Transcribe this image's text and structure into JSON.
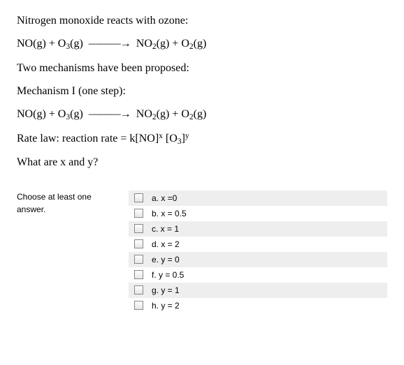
{
  "question": {
    "line1": "Nitrogen monoxide reacts with ozone:",
    "eq1_left": "NO(g) + O",
    "eq1_sub1": "3",
    "eq1_mid1": "(g)",
    "eq1_arrow": "———→",
    "eq1_r1": "NO",
    "eq1_sub2": "2",
    "eq1_r2": "(g) + O",
    "eq1_sub3": "2",
    "eq1_r3": "(g)",
    "line3": "Two mechanisms have been proposed:",
    "line4": "Mechanism I (one step):",
    "eq2_left": "NO(g) + O",
    "eq2_sub1": "3",
    "eq2_mid1": "(g)",
    "eq2_arrow": "———→",
    "eq2_r1": "NO",
    "eq2_sub2": "2",
    "eq2_r2": "(g) + O",
    "eq2_sub3": "2",
    "eq2_r3": "(g)",
    "rate_prefix": "Rate law:  reaction rate = k[NO]",
    "rate_supx": "x",
    "rate_mid": " [O",
    "rate_sub3": "3",
    "rate_close": "]",
    "rate_supy": "y",
    "line7": "What are x and y?"
  },
  "answer": {
    "prompt1": "Choose at least one",
    "prompt2": "answer.",
    "options": [
      {
        "label": "a. x =0"
      },
      {
        "label": "b. x = 0.5"
      },
      {
        "label": "c. x = 1"
      },
      {
        "label": "d. x = 2"
      },
      {
        "label": "e. y = 0"
      },
      {
        "label": "f. y = 0.5"
      },
      {
        "label": "g. y = 1"
      },
      {
        "label": "h. y = 2"
      }
    ]
  }
}
